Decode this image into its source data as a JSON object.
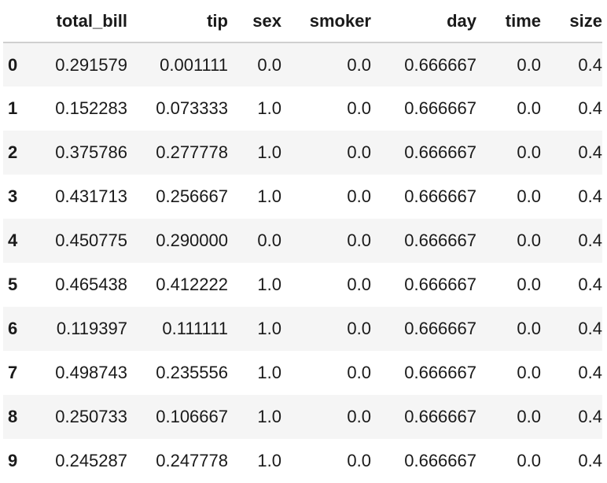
{
  "table": {
    "index_header": "",
    "columns": [
      "total_bill",
      "tip",
      "sex",
      "smoker",
      "day",
      "time",
      "size"
    ],
    "rows": [
      {
        "index": "0",
        "values": [
          "0.291579",
          "0.001111",
          "0.0",
          "0.0",
          "0.666667",
          "0.0",
          "0.4"
        ]
      },
      {
        "index": "1",
        "values": [
          "0.152283",
          "0.073333",
          "1.0",
          "0.0",
          "0.666667",
          "0.0",
          "0.4"
        ]
      },
      {
        "index": "2",
        "values": [
          "0.375786",
          "0.277778",
          "1.0",
          "0.0",
          "0.666667",
          "0.0",
          "0.4"
        ]
      },
      {
        "index": "3",
        "values": [
          "0.431713",
          "0.256667",
          "1.0",
          "0.0",
          "0.666667",
          "0.0",
          "0.4"
        ]
      },
      {
        "index": "4",
        "values": [
          "0.450775",
          "0.290000",
          "0.0",
          "0.0",
          "0.666667",
          "0.0",
          "0.4"
        ]
      },
      {
        "index": "5",
        "values": [
          "0.465438",
          "0.412222",
          "1.0",
          "0.0",
          "0.666667",
          "0.0",
          "0.4"
        ]
      },
      {
        "index": "6",
        "values": [
          "0.119397",
          "0.111111",
          "1.0",
          "0.0",
          "0.666667",
          "0.0",
          "0.4"
        ]
      },
      {
        "index": "7",
        "values": [
          "0.498743",
          "0.235556",
          "1.0",
          "0.0",
          "0.666667",
          "0.0",
          "0.4"
        ]
      },
      {
        "index": "8",
        "values": [
          "0.250733",
          "0.106667",
          "1.0",
          "0.0",
          "0.666667",
          "0.0",
          "0.4"
        ]
      },
      {
        "index": "9",
        "values": [
          "0.245287",
          "0.247778",
          "1.0",
          "0.0",
          "0.666667",
          "0.0",
          "0.4"
        ]
      }
    ]
  },
  "colors": {
    "stripe": "#f5f5f5",
    "header_rule": "#cfcfcf",
    "text": "#1a1a1a"
  }
}
